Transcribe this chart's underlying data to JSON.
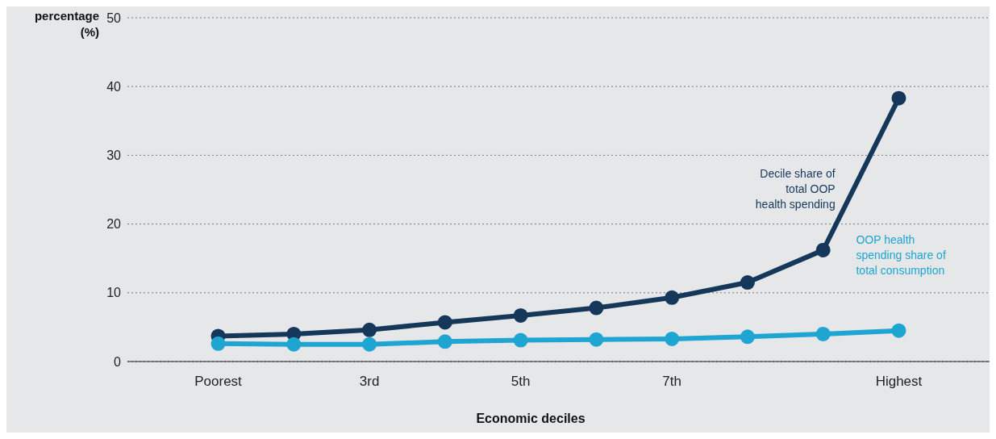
{
  "chart_data": {
    "type": "line",
    "ylabel": "percentage (%)",
    "xlabel": "Economic deciles",
    "categories": [
      "Poorest",
      null,
      "3rd",
      null,
      "5th",
      null,
      "7th",
      null,
      null,
      "Highest"
    ],
    "series": [
      {
        "name": "Decile share of total OOP health spending",
        "color": "#14375a",
        "values": [
          3.7,
          4.0,
          4.6,
          5.7,
          6.7,
          7.8,
          9.3,
          11.5,
          16.2,
          38.3
        ]
      },
      {
        "name": "OOP health spending share of total consumption",
        "color": "#1ea5d2",
        "values": [
          2.6,
          2.5,
          2.5,
          2.9,
          3.1,
          3.2,
          3.3,
          3.6,
          4.0,
          4.5
        ]
      }
    ],
    "ylim": [
      0,
      50
    ],
    "yticks": [
      0,
      10,
      20,
      30,
      40,
      50
    ],
    "grid": "y",
    "marker": "circle",
    "line_style": "solid"
  }
}
